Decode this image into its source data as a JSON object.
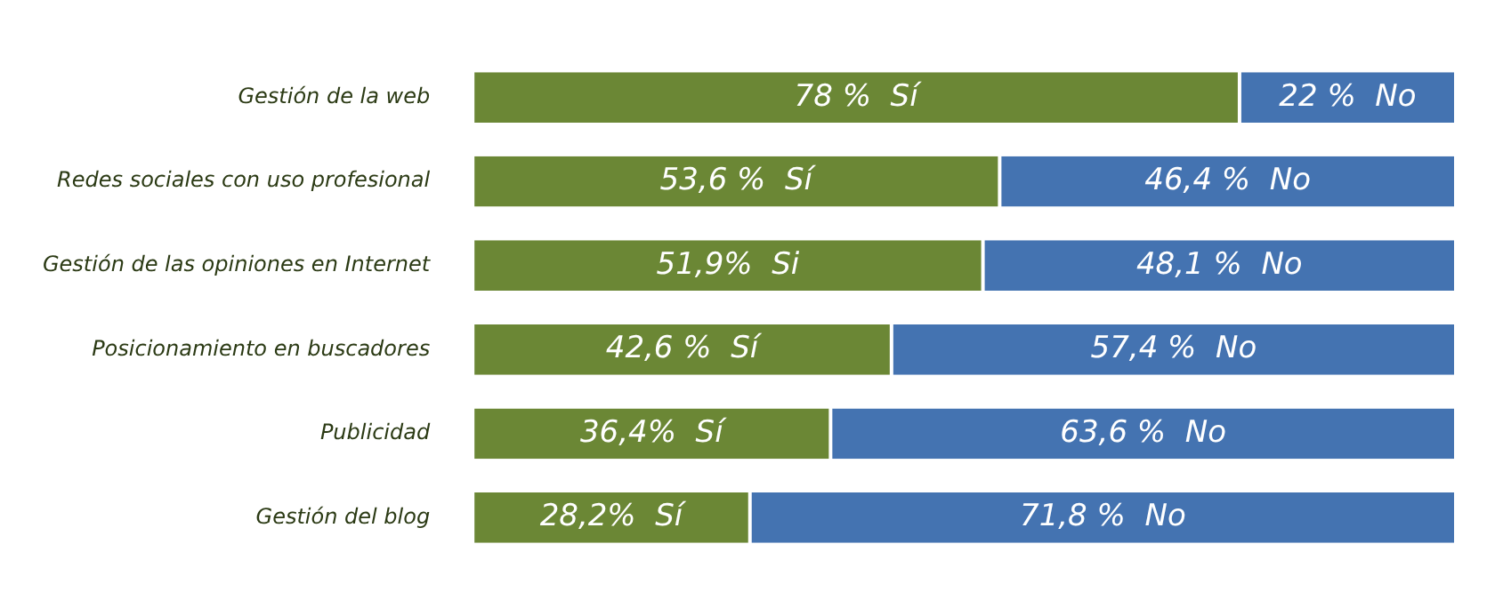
{
  "chart_data": {
    "type": "bar",
    "orientation": "horizontal",
    "stacked": true,
    "categories": [
      "Gestión de la web",
      "Redes sociales con uso profesional",
      "Gestión de las opiniones en Internet",
      "Posicionamiento en buscadores",
      "Publicidad",
      "Gestión del blog"
    ],
    "series": [
      {
        "color": "#6b8735",
        "values": [
          78,
          53.6,
          51.9,
          42.6,
          36.4,
          28.2
        ],
        "value_labels": [
          "78 %  Sí",
          "53,6 %  Sí",
          "51,9%  Si",
          "42,6 %  Sí",
          "36,4%  Sí",
          "28,2%  Sí"
        ]
      },
      {
        "color": "#4473b1",
        "values": [
          22,
          46.4,
          48.1,
          57.4,
          63.6,
          71.8
        ],
        "value_labels": [
          "22 %  No",
          "46,4 %  No",
          "48,1 %  No",
          "57,4 %  No",
          "63,6 %  No",
          "71,8 %  No"
        ]
      }
    ],
    "xlim": [
      0,
      100
    ],
    "tick_labels": "y"
  }
}
